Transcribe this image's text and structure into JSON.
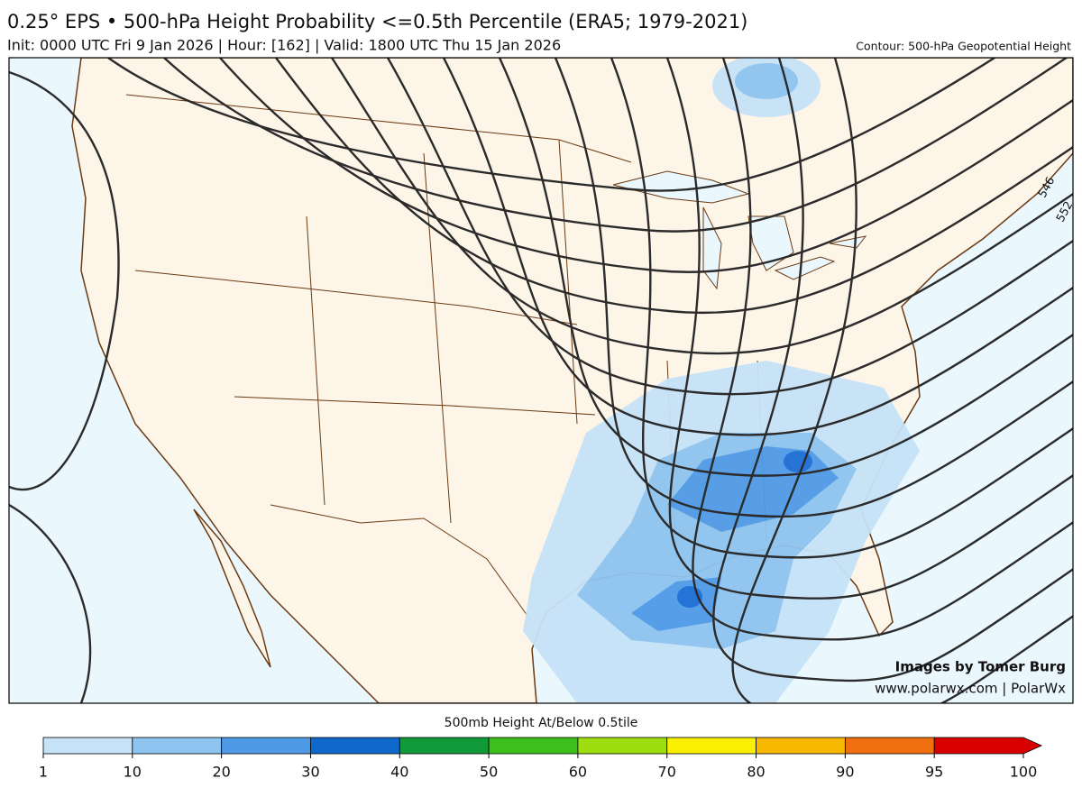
{
  "header": {
    "title": "0.25° EPS • 500-hPa Height Probability <=0.5th Percentile (ERA5; 1979-2021)",
    "subtitle": "Init: 0000 UTC Fri 9 Jan 2026 | Hour: [162] | Valid: 1800 UTC Thu 15 Jan 2026",
    "contour_note": "Contour: 500-hPa Geopotential Height"
  },
  "map": {
    "contour_labels": [
      "546",
      "552"
    ],
    "credit": "Images by Tomer Burg",
    "website": "www.polarwx.com | PolarWx"
  },
  "colorbar": {
    "title": "500mb Height At/Below 0.5tile",
    "ticks": [
      1,
      10,
      20,
      30,
      40,
      50,
      60,
      70,
      80,
      90,
      95,
      100
    ],
    "colors": [
      "#c6e2f7",
      "#8ec4f0",
      "#4f9ae6",
      "#0f68cc",
      "#109a3a",
      "#3cc01c",
      "#9ede10",
      "#f8f000",
      "#f8b800",
      "#f07010",
      "#d80000"
    ]
  }
}
